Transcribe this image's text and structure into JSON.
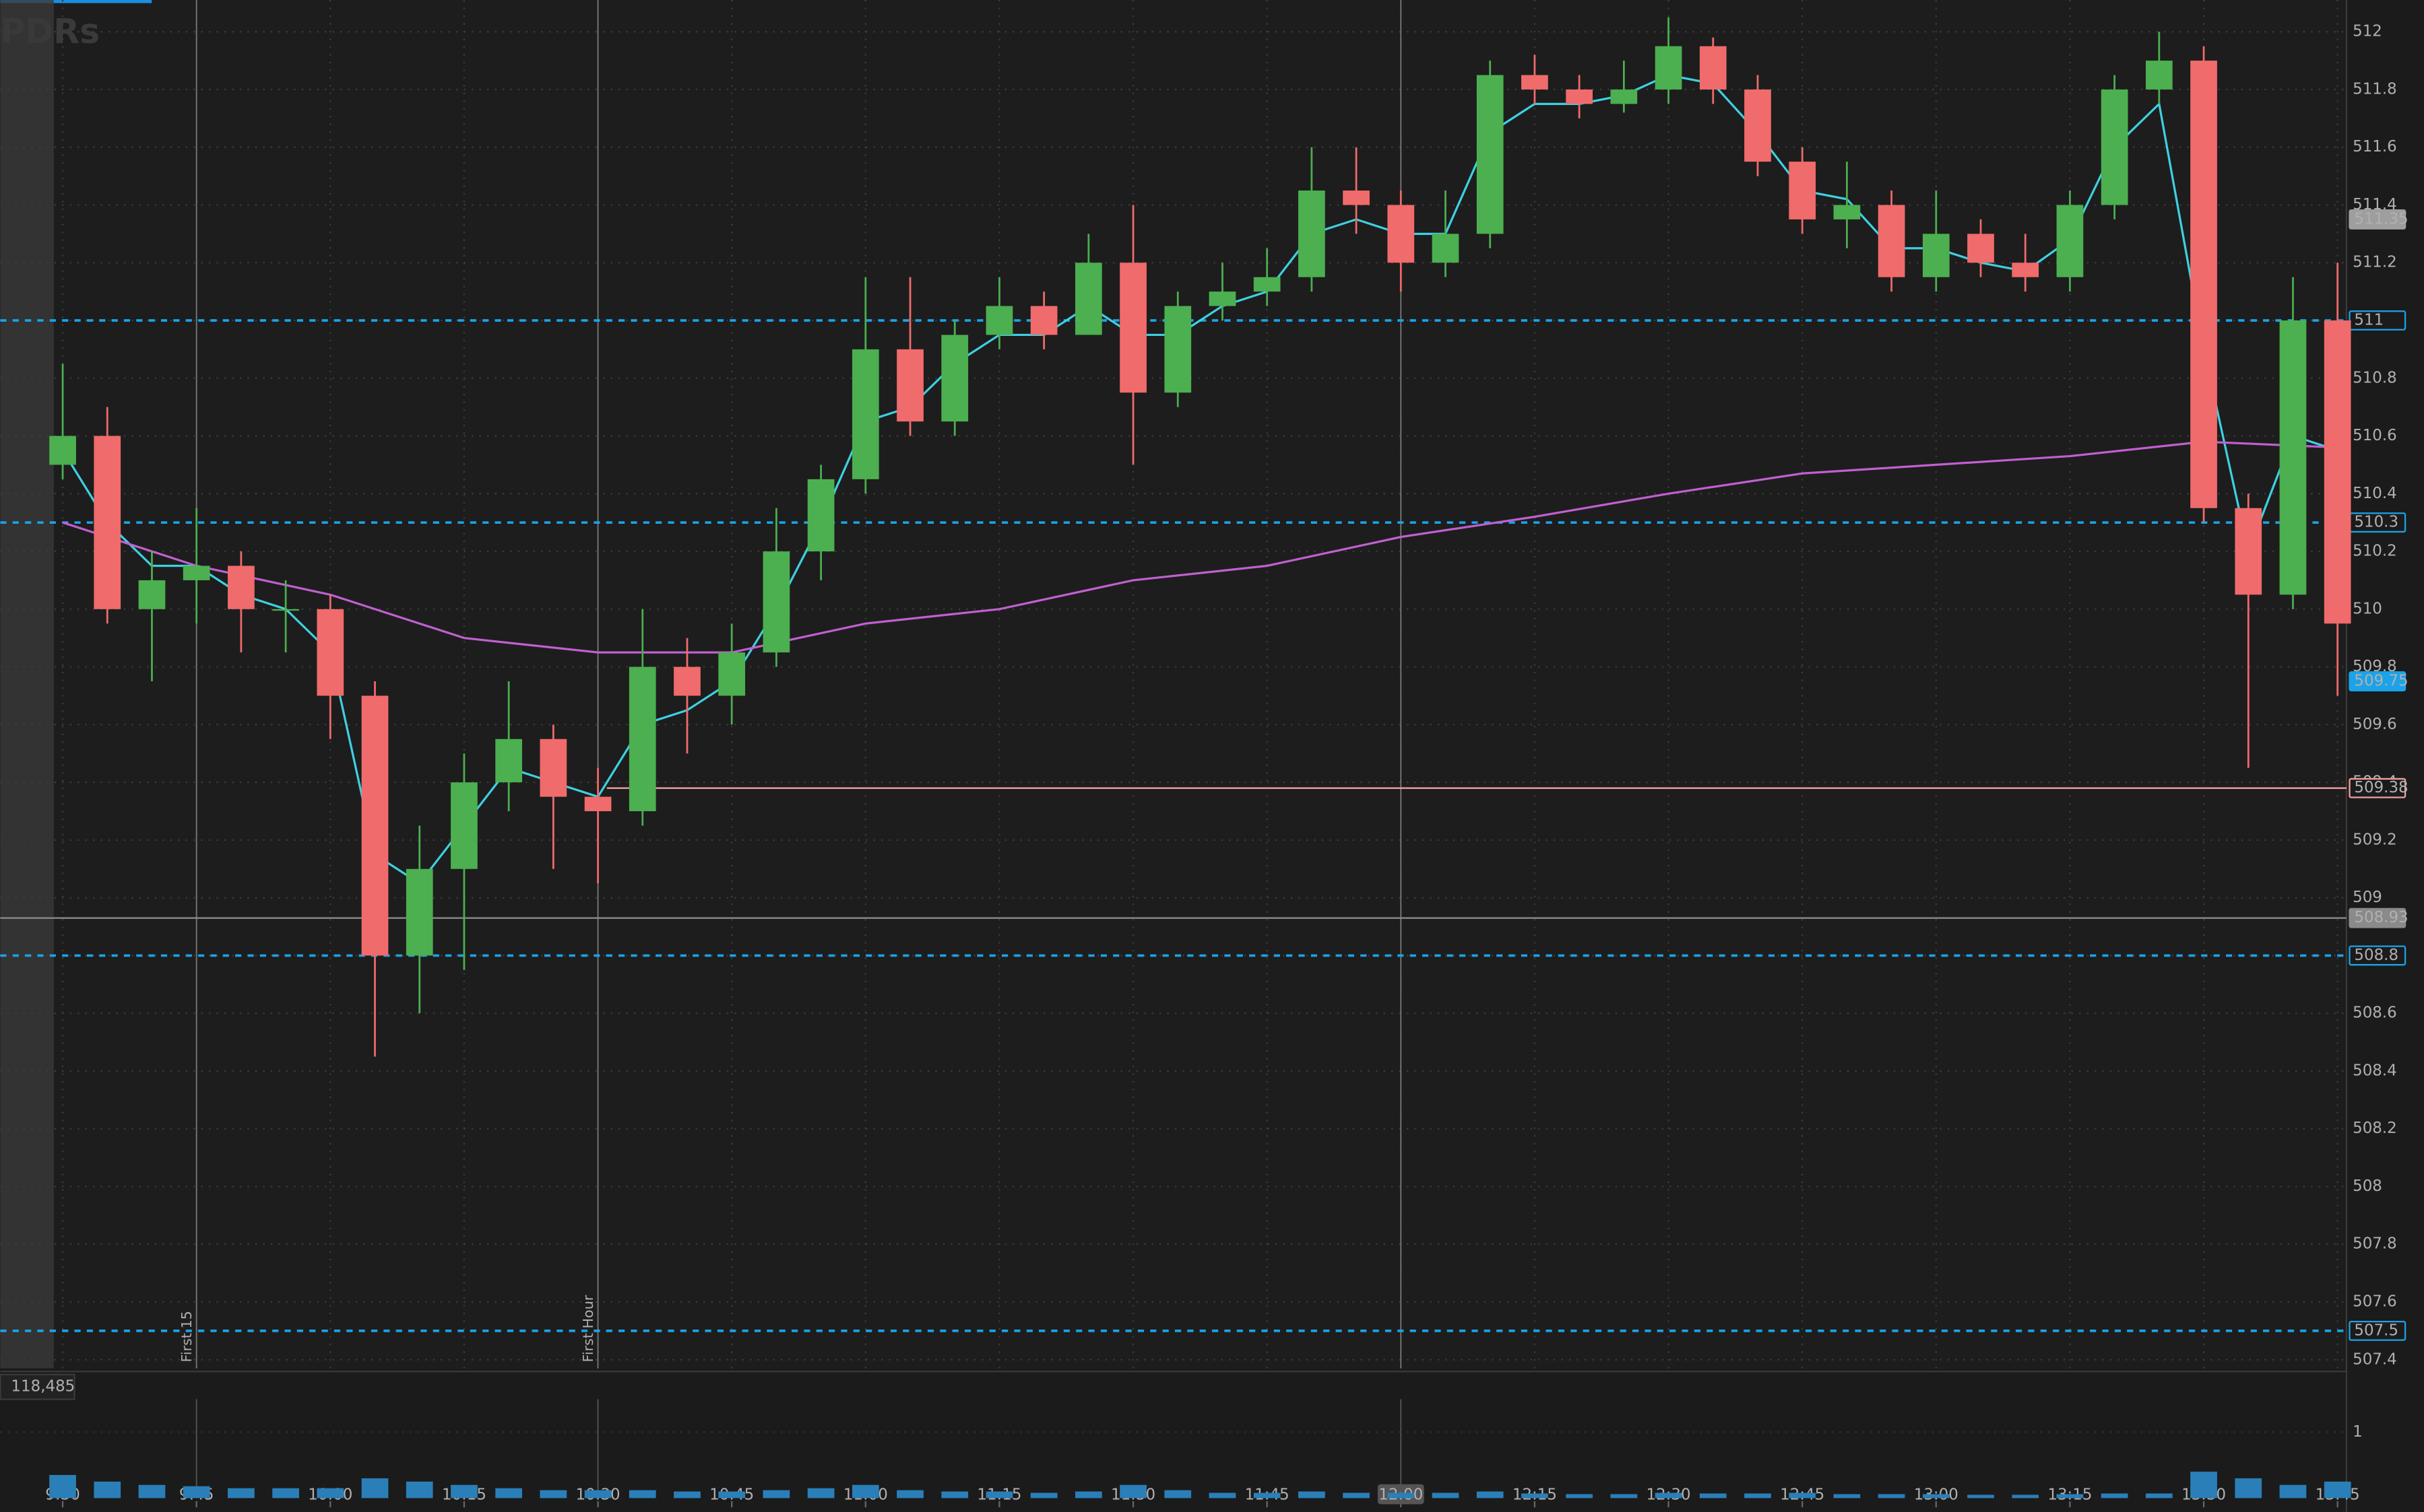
{
  "chart_data": {
    "type": "candlestick",
    "watermark": "PDRs",
    "up_color": "#4caf50",
    "down_color": "#f06b6b",
    "x": [
      "9:30",
      "9:35",
      "9:40",
      "9:45",
      "9:50",
      "9:55",
      "10:00",
      "10:05",
      "10:10",
      "10:15",
      "10:20",
      "10:25",
      "10:30",
      "10:35",
      "10:40",
      "10:45",
      "10:50",
      "10:55",
      "11:00",
      "11:05",
      "11:10",
      "11:15",
      "11:20",
      "11:25",
      "11:30",
      "11:35",
      "11:40",
      "11:45",
      "11:50",
      "11:55",
      "12:00",
      "12:05",
      "12:10",
      "12:15",
      "12:20",
      "12:25",
      "12:30",
      "12:35",
      "12:40",
      "12:45",
      "12:50",
      "12:55",
      "13:00",
      "13:05",
      "13:10",
      "13:15",
      "13:20",
      "13:25",
      "13:30",
      "13:35",
      "13:40",
      "13:45"
    ],
    "open": [
      510.5,
      510.6,
      510.0,
      510.1,
      510.15,
      510.0,
      510.0,
      509.7,
      508.8,
      509.1,
      509.4,
      509.55,
      509.35,
      509.3,
      509.8,
      509.7,
      509.85,
      510.2,
      510.45,
      510.9,
      510.65,
      510.95,
      511.05,
      510.95,
      511.2,
      510.75,
      511.05,
      511.1,
      511.15,
      511.45,
      511.4,
      511.2,
      511.3,
      511.85,
      511.8,
      511.75,
      511.8,
      511.95,
      511.8,
      511.55,
      511.35,
      511.4,
      511.15,
      511.3,
      511.2,
      511.15,
      511.4,
      511.8,
      511.9,
      510.35,
      510.05,
      511.0
    ],
    "high": [
      510.85,
      510.7,
      510.2,
      510.35,
      510.2,
      510.1,
      510.05,
      509.75,
      509.25,
      509.5,
      509.75,
      509.6,
      509.45,
      510.0,
      509.9,
      509.95,
      510.35,
      510.5,
      511.15,
      511.15,
      511.0,
      511.15,
      511.1,
      511.3,
      511.4,
      511.1,
      511.2,
      511.25,
      511.6,
      511.6,
      511.45,
      511.45,
      511.9,
      511.92,
      511.85,
      511.9,
      512.05,
      511.98,
      511.85,
      511.6,
      511.55,
      511.45,
      511.45,
      511.35,
      511.3,
      511.45,
      511.85,
      512.0,
      511.95,
      510.4,
      511.15,
      511.2
    ],
    "low": [
      510.45,
      509.95,
      509.75,
      509.95,
      509.85,
      509.85,
      509.55,
      508.45,
      508.6,
      508.75,
      509.3,
      509.1,
      509.05,
      509.25,
      509.5,
      509.6,
      509.8,
      510.1,
      510.4,
      510.6,
      510.6,
      510.9,
      510.9,
      510.95,
      510.5,
      510.7,
      511.0,
      511.05,
      511.1,
      511.3,
      511.1,
      511.15,
      511.25,
      511.75,
      511.7,
      511.72,
      511.75,
      511.75,
      511.5,
      511.3,
      511.25,
      511.1,
      511.1,
      511.15,
      511.1,
      511.1,
      511.35,
      511.75,
      510.3,
      509.45,
      510.0,
      509.7
    ],
    "close": [
      510.6,
      510.0,
      510.1,
      510.15,
      510.0,
      510.0,
      509.7,
      508.8,
      509.1,
      509.4,
      509.55,
      509.35,
      509.3,
      509.8,
      509.7,
      509.85,
      510.2,
      510.45,
      510.9,
      510.65,
      510.95,
      511.05,
      510.95,
      511.2,
      510.75,
      511.05,
      511.1,
      511.15,
      511.45,
      511.4,
      511.2,
      511.3,
      511.85,
      511.8,
      511.75,
      511.8,
      511.95,
      511.8,
      511.55,
      511.35,
      511.4,
      511.15,
      511.3,
      511.2,
      511.15,
      511.4,
      511.8,
      511.9,
      510.35,
      510.05,
      511.0,
      509.95
    ],
    "lines": [
      {
        "color": "#3ed0e0",
        "x": [
          "9:30",
          "9:35",
          "9:40",
          "9:45",
          "9:50",
          "9:55",
          "10:00",
          "10:05",
          "10:10",
          "10:15",
          "10:20",
          "10:25",
          "10:30",
          "10:35",
          "10:40",
          "10:45",
          "10:50",
          "10:55",
          "11:00",
          "11:05",
          "11:10",
          "11:15",
          "11:20",
          "11:25",
          "11:30",
          "11:35",
          "11:40",
          "11:45",
          "11:50",
          "11:55",
          "12:00",
          "12:05",
          "12:10",
          "12:15",
          "12:20",
          "12:25",
          "12:30",
          "12:35",
          "12:40",
          "12:45",
          "12:50",
          "12:55",
          "13:00",
          "13:05",
          "13:10",
          "13:15",
          "13:20",
          "13:25",
          "13:30",
          "13:35",
          "13:40",
          "13:45"
        ],
        "values": [
          510.55,
          510.3,
          510.15,
          510.15,
          510.05,
          510.0,
          509.85,
          509.15,
          509.05,
          509.25,
          509.45,
          509.4,
          509.35,
          509.6,
          509.65,
          509.75,
          510.0,
          510.3,
          510.65,
          510.7,
          510.85,
          510.95,
          510.95,
          511.05,
          510.95,
          510.95,
          511.05,
          511.1,
          511.3,
          511.35,
          511.3,
          511.3,
          511.65,
          511.75,
          511.75,
          511.78,
          511.85,
          511.82,
          511.65,
          511.45,
          511.42,
          511.25,
          511.25,
          511.2,
          511.17,
          511.28,
          511.6,
          511.75,
          510.9,
          510.2,
          510.6,
          510.55
        ]
      },
      {
        "color": "#c060d0",
        "x": [
          "9:30",
          "9:45",
          "10:00",
          "10:15",
          "10:30",
          "10:45",
          "11:00",
          "11:15",
          "11:30",
          "11:45",
          "12:00",
          "12:15",
          "12:30",
          "12:45",
          "13:00",
          "13:15",
          "13:30",
          "13:45"
        ],
        "values": [
          510.3,
          510.15,
          510.05,
          509.9,
          509.85,
          509.85,
          509.95,
          510.0,
          510.1,
          510.15,
          510.25,
          510.32,
          510.4,
          510.47,
          510.5,
          510.53,
          510.58,
          510.56
        ]
      }
    ],
    "levels": [
      {
        "value": 511.35,
        "color": "#9e9e9e",
        "style": "none",
        "tag_fill": true
      },
      {
        "value": 511,
        "color": "#1aa3e8",
        "style": "dashed",
        "tag_fill": false
      },
      {
        "value": 510.3,
        "color": "#1aa3e8",
        "style": "dashed",
        "tag_fill": false
      },
      {
        "value": 509.75,
        "color": "#1aa3e8",
        "style": "none",
        "tag_fill": true
      },
      {
        "value": 509.38,
        "color": "#f0a0a0",
        "style": "solid",
        "tag_fill": false,
        "from": "10:31"
      },
      {
        "value": 508.93,
        "color": "#8a8a8a",
        "style": "solid",
        "tag_fill": true
      },
      {
        "value": 508.8,
        "color": "#1aa3e8",
        "style": "dashed",
        "tag_fill": false
      },
      {
        "value": 507.5,
        "color": "#1aa3e8",
        "style": "dashed",
        "tag_fill": false
      }
    ],
    "markers": [
      {
        "x": "9:45",
        "label": "First 15"
      },
      {
        "x": "10:30",
        "label": "First Hour"
      },
      {
        "x": "12:00"
      }
    ],
    "shade_until": "9:29",
    "xlim": [
      "9:23",
      "13:46"
    ],
    "xticks": [
      "9:30",
      "9:45",
      "10:00",
      "10:15",
      "10:30",
      "10:45",
      "11:00",
      "11:15",
      "11:30",
      "11:45",
      "12:00",
      "12:15",
      "12:30",
      "12:45",
      "13:00",
      "13:15",
      "13:30",
      "13:45"
    ],
    "highlight_tick": "12:00",
    "ylim": [
      507.37,
      512.11
    ],
    "yticks": [
      507.4,
      507.6,
      507.8,
      508,
      508.2,
      508.4,
      508.6,
      508.8,
      509,
      509.2,
      509.4,
      509.6,
      509.8,
      510,
      510.2,
      510.4,
      510.6,
      510.8,
      511,
      511.2,
      511.4,
      511.6,
      511.8,
      512
    ],
    "grid": true,
    "volume": {
      "label": "118,485",
      "color": "#2a7fb8",
      "ylim": [
        0,
        1.45
      ],
      "yticks": [
        1
      ],
      "values": [
        0.35,
        0.25,
        0.2,
        0.18,
        0.15,
        0.15,
        0.15,
        0.3,
        0.25,
        0.2,
        0.15,
        0.12,
        0.12,
        0.12,
        0.1,
        0.1,
        0.12,
        0.15,
        0.2,
        0.12,
        0.1,
        0.1,
        0.08,
        0.1,
        0.2,
        0.12,
        0.08,
        0.08,
        0.1,
        0.08,
        0.08,
        0.08,
        0.1,
        0.07,
        0.06,
        0.06,
        0.08,
        0.07,
        0.07,
        0.08,
        0.06,
        0.06,
        0.06,
        0.05,
        0.05,
        0.06,
        0.07,
        0.07,
        0.4,
        0.3,
        0.2,
        0.25
      ]
    }
  }
}
